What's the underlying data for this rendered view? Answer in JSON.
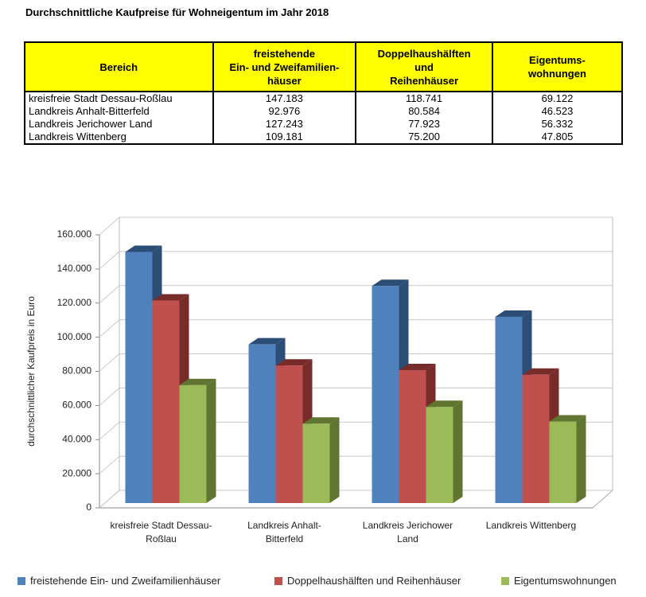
{
  "title": "Durchschnittliche Kaufpreise für Wohneigentum im Jahr 2018",
  "table": {
    "header": [
      [
        "Bereich"
      ],
      [
        "freistehende",
        "Ein- und Zweifamilien-",
        "häuser"
      ],
      [
        "Doppelhaushälften",
        "und",
        "Reihenhäuser"
      ],
      [
        "Eigentums-",
        "wohnungen"
      ]
    ],
    "rows": [
      [
        "kreisfreie Stadt Dessau-Roßlau",
        "147.183",
        "118.741",
        "69.122"
      ],
      [
        "Landkreis Anhalt-Bitterfeld",
        "92.976",
        "80.584",
        "46.523"
      ],
      [
        "Landkreis Jerichower Land",
        "127.243",
        "77.923",
        "56.332"
      ],
      [
        "Landkreis Wittenberg",
        "109.181",
        "75.200",
        "47.805"
      ]
    ]
  },
  "chart_data": {
    "type": "bar3d",
    "y_label": "durchschnittlicher Kaufpreis in Euro",
    "categories": [
      "kreisfreie Stadt Dessau-Roßlau",
      "Landkreis Anhalt-Bitterfeld",
      "Landkreis Jerichower Land",
      "Landkreis Wittenberg"
    ],
    "series": [
      {
        "name": "freistehende Ein- und Zweifamilienhäuser",
        "color": "#4f81bd",
        "side": "#2c4d75",
        "values": [
          147183,
          92976,
          127243,
          109181
        ]
      },
      {
        "name": "Doppelhaushälften und Reihenhäuser",
        "color": "#c0504d",
        "side": "#772c2a",
        "values": [
          118741,
          80584,
          77923,
          75200
        ]
      },
      {
        "name": "Eigentumswohnungen",
        "color": "#9bbb59",
        "side": "#5f7530",
        "values": [
          69122,
          46523,
          56332,
          47805
        ]
      }
    ],
    "ylim": [
      0,
      160000
    ],
    "yticks": [
      0,
      {
        "value": 20000,
        "label": "20.000"
      },
      {
        "value": 40000,
        "label": "40.000"
      },
      {
        "value": 60000,
        "label": "60.000"
      },
      {
        "value": 80000,
        "label": "80.000"
      },
      {
        "value": 100000,
        "label": "100.000"
      },
      {
        "value": 120000,
        "label": "120.000"
      },
      {
        "value": 140000,
        "label": "140.000"
      },
      {
        "value": 160000,
        "label": "160.000"
      }
    ],
    "grid": true,
    "legend": "bottom"
  }
}
